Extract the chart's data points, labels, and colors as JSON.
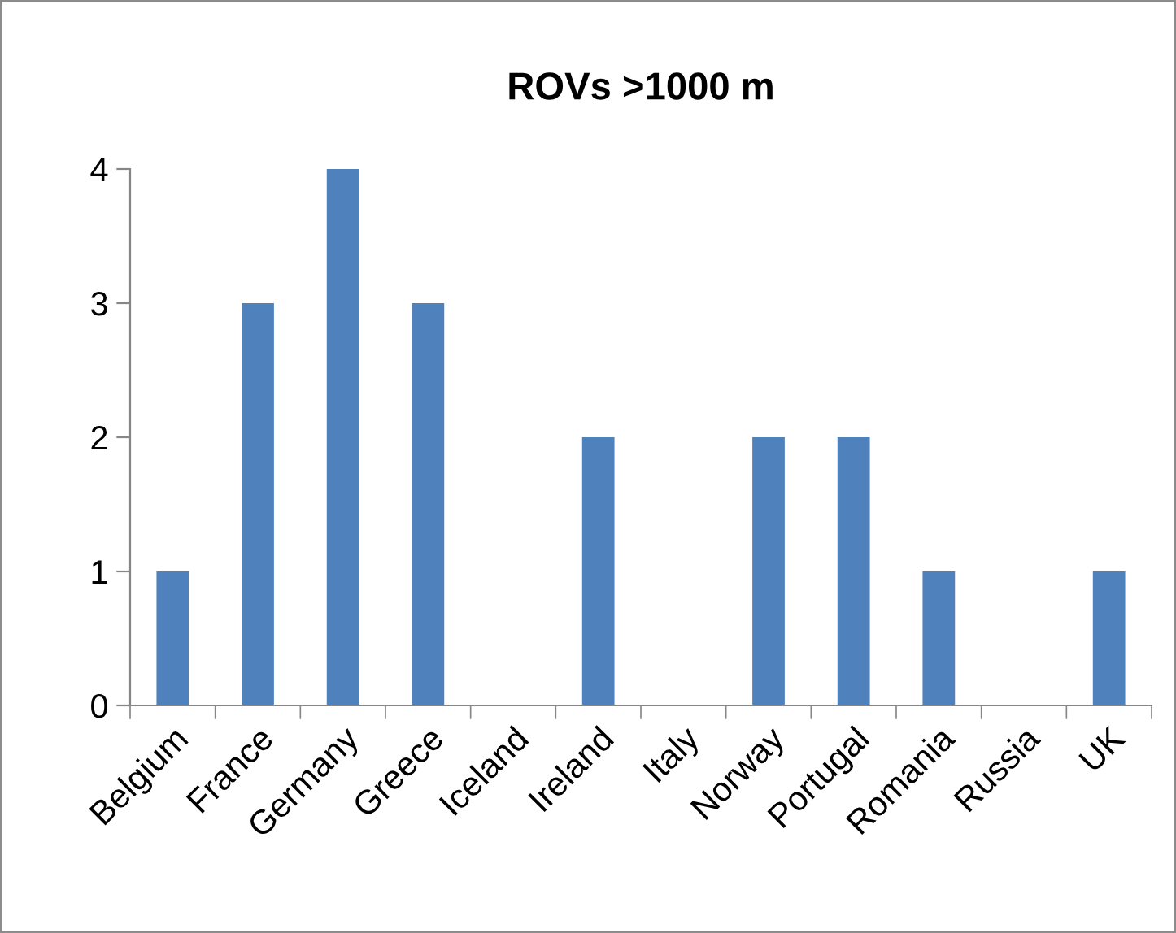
{
  "chart_data": {
    "type": "bar",
    "title": "ROVs >1000 m",
    "categories": [
      "Belgium",
      "France",
      "Germany",
      "Greece",
      "Iceland",
      "Ireland",
      "Italy",
      "Norway",
      "Portugal",
      "Romania",
      "Russia",
      "UK"
    ],
    "values": [
      1,
      3,
      4,
      3,
      0,
      2,
      0,
      2,
      2,
      1,
      0,
      1
    ],
    "color": "#4f81bd",
    "ylim": [
      0,
      4
    ],
    "yticks": [
      0,
      1,
      2,
      3,
      4
    ],
    "grid": false
  }
}
